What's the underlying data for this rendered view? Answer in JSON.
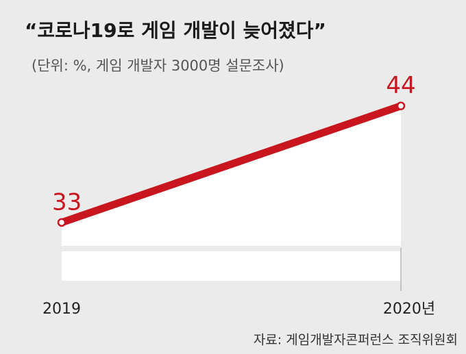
{
  "chart_data": {
    "type": "line",
    "title": "“코로나19로 게임 개발이 늦어졌다”",
    "subtitle": "(단위: %, 게임 개발자 3000명 설문조사)",
    "source": "자료: 게임개발자콘퍼런스 조직위원회",
    "categories": [
      "2019",
      "2020년"
    ],
    "values": [
      33,
      44
    ],
    "color": "#c9151e",
    "fill_color": "#ffffff",
    "ylim": [
      27.5,
      46.5
    ]
  }
}
